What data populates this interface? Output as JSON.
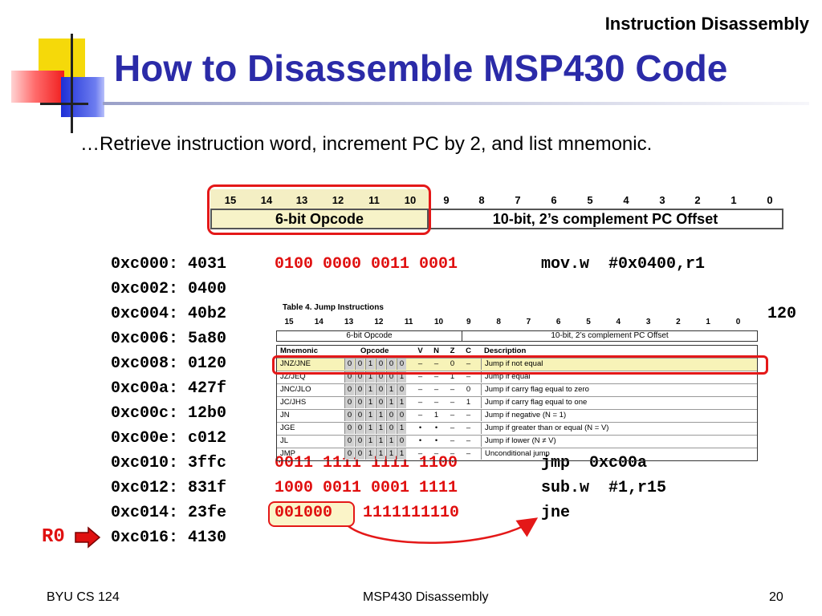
{
  "slide": {
    "section_title": "Instruction Disassembly",
    "title": "How to Disassemble MSP430 Code",
    "subtitle": "…Retrieve instruction word, increment PC by 2, and list mnemonic."
  },
  "bit_format": {
    "bit_numbers": [
      "15",
      "14",
      "13",
      "12",
      "11",
      "10",
      "9",
      "8",
      "7",
      "6",
      "5",
      "4",
      "3",
      "2",
      "1",
      "0"
    ],
    "opcode_label": "6-bit Opcode",
    "offset_label": "10-bit, 2’s complement PC Offset"
  },
  "listing": [
    {
      "addr": "0xc000: 4031",
      "bin": "0100 0000 0011 0001",
      "asm": "mov.w  #0x0400,r1"
    },
    {
      "addr": "0xc002: 0400",
      "bin": "",
      "asm": ""
    },
    {
      "addr": "0xc004: 40b2",
      "bin": "",
      "asm": "120"
    },
    {
      "addr": "0xc006: 5a80",
      "bin": "",
      "asm": ""
    },
    {
      "addr": "0xc008: 0120",
      "bin": "",
      "asm": ""
    },
    {
      "addr": "0xc00a: 427f",
      "bin": "",
      "asm": ""
    },
    {
      "addr": "0xc00c: 12b0",
      "bin": "",
      "asm": ""
    },
    {
      "addr": "0xc00e: c012",
      "bin": "",
      "asm": ""
    },
    {
      "addr": "0xc010: 3ffc",
      "bin": "0011 1111 1111 1100",
      "asm": "jmp  0xc00a"
    },
    {
      "addr": "0xc012: 831f",
      "bin": "1000 0011 0001 1111",
      "asm": "sub.w  #1,r15"
    },
    {
      "addr": "0xc014: 23fe",
      "bin_a": "001000",
      "bin_b": "1111111110",
      "asm": "jne"
    },
    {
      "addr": "0xc016: 4130",
      "bin": "",
      "asm": ""
    }
  ],
  "pc_marker": "R0",
  "jump_table": {
    "caption": "Table 4. Jump Instructions",
    "bit_numbers": [
      "15",
      "14",
      "13",
      "12",
      "11",
      "10",
      "9",
      "8",
      "7",
      "6",
      "5",
      "4",
      "3",
      "2",
      "1",
      "0"
    ],
    "opcode_label": "6-bit Opcode",
    "offset_label": "10-bit, 2’s complement PC Offset",
    "headers": {
      "mnemonic": "Mnemonic",
      "opcode": "Opcode",
      "v": "V",
      "n": "N",
      "z": "Z",
      "c": "C",
      "description": "Description"
    },
    "rows": [
      {
        "mnemonic": "JNZ/JNE",
        "bits": [
          "0",
          "0",
          "1",
          "0",
          "0",
          "0"
        ],
        "v": "–",
        "n": "–",
        "z": "0",
        "c": "–",
        "description": "Jump if not equal"
      },
      {
        "mnemonic": "JZ/JEQ",
        "bits": [
          "0",
          "0",
          "1",
          "0",
          "0",
          "1"
        ],
        "v": "–",
        "n": "–",
        "z": "1",
        "c": "–",
        "description": "Jump if equal"
      },
      {
        "mnemonic": "JNC/JLO",
        "bits": [
          "0",
          "0",
          "1",
          "0",
          "1",
          "0"
        ],
        "v": "–",
        "n": "–",
        "z": "–",
        "c": "0",
        "description": "Jump if carry flag equal to zero"
      },
      {
        "mnemonic": "JC/JHS",
        "bits": [
          "0",
          "0",
          "1",
          "0",
          "1",
          "1"
        ],
        "v": "–",
        "n": "–",
        "z": "–",
        "c": "1",
        "description": "Jump if carry flag equal to one"
      },
      {
        "mnemonic": "JN",
        "bits": [
          "0",
          "0",
          "1",
          "1",
          "0",
          "0"
        ],
        "v": "–",
        "n": "1",
        "z": "–",
        "c": "–",
        "description": "Jump if negative (N = 1)"
      },
      {
        "mnemonic": "JGE",
        "bits": [
          "0",
          "0",
          "1",
          "1",
          "0",
          "1"
        ],
        "v": "•",
        "n": "•",
        "z": "–",
        "c": "–",
        "description": "Jump if greater than or equal (N = V)"
      },
      {
        "mnemonic": "JL",
        "bits": [
          "0",
          "0",
          "1",
          "1",
          "1",
          "0"
        ],
        "v": "•",
        "n": "•",
        "z": "–",
        "c": "–",
        "description": "Jump if lower (N ≠ V)"
      },
      {
        "mnemonic": "JMP",
        "bits": [
          "0",
          "0",
          "1",
          "1",
          "1",
          "1"
        ],
        "v": "–",
        "n": "–",
        "z": "–",
        "c": "–",
        "description": "Unconditional jump"
      }
    ]
  },
  "footer": {
    "left": "BYU CS 124",
    "center": "MSP430 Disassembly",
    "page": "20"
  },
  "colors": {
    "title": "#2b2ba8",
    "highlight_red": "#e41818",
    "binary_red": "#e01010",
    "opcode_fill": "#f7f3c8"
  }
}
